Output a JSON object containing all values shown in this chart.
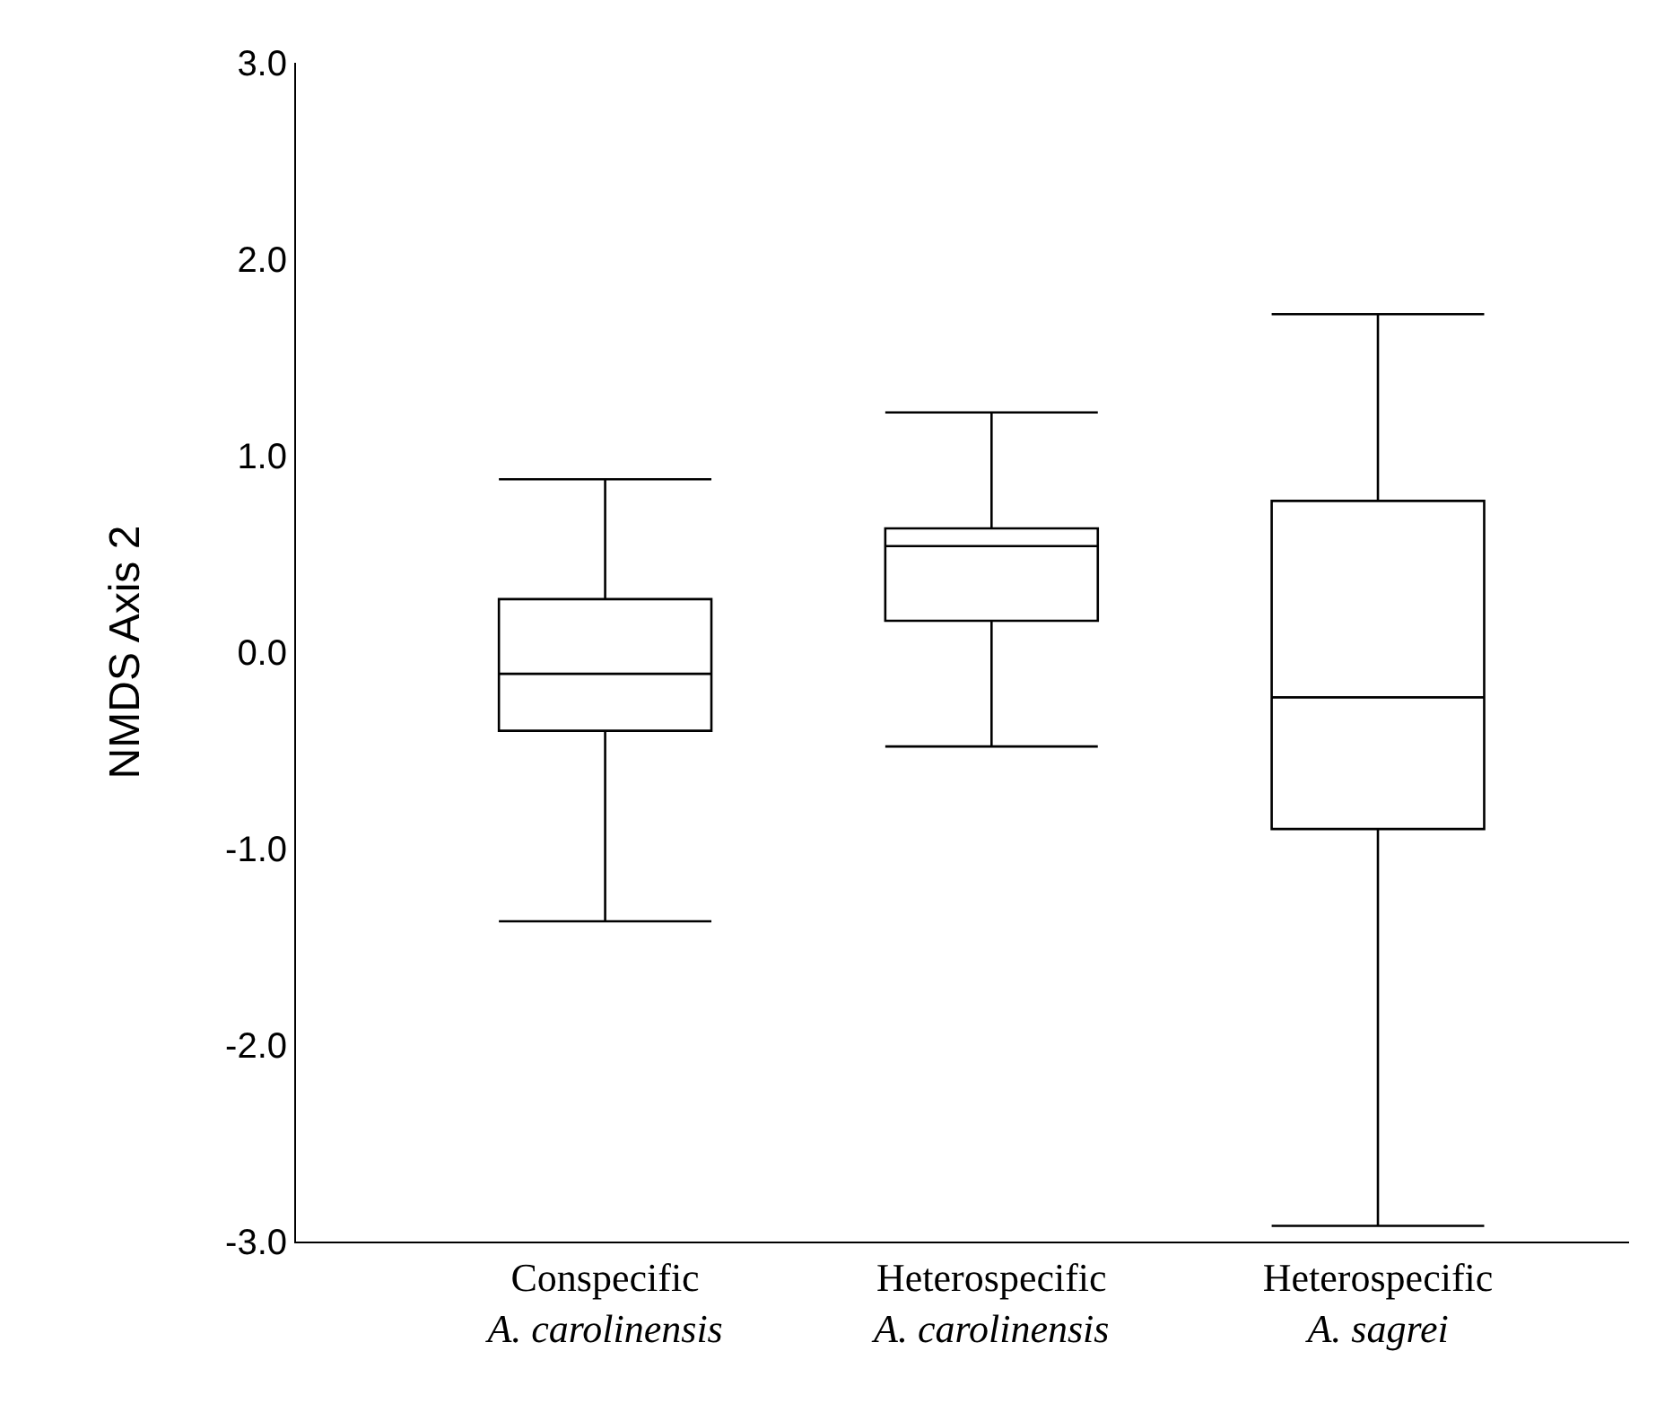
{
  "chart_data": {
    "type": "box",
    "ylabel": "NMDS Axis 2",
    "categories": [
      "Conspecific\nA. carolinensis",
      "Heterospecific\nA. carolinensis",
      "Heterospecific\nA. sagrei"
    ],
    "boxes": [
      {
        "low": -1.37,
        "q1": -0.4,
        "median": -0.11,
        "q3": 0.27,
        "high": 0.88
      },
      {
        "low": -0.48,
        "q1": 0.16,
        "median": 0.54,
        "q3": 0.63,
        "high": 1.22
      },
      {
        "low": -2.92,
        "q1": -0.9,
        "median": -0.23,
        "q3": 0.77,
        "high": 1.72
      }
    ],
    "color": "#000000",
    "ylim": [
      -3,
      3
    ],
    "yticks": [
      {
        "value": -3,
        "label": "-3.0"
      },
      {
        "value": -2,
        "label": "-2.0"
      },
      {
        "value": -1,
        "label": "-1.0"
      },
      {
        "value": 0,
        "label": "0.0"
      },
      {
        "value": 1,
        "label": "1.0"
      },
      {
        "value": 2,
        "label": "2.0"
      },
      {
        "value": 3,
        "label": "3.0"
      }
    ],
    "legend": false
  }
}
